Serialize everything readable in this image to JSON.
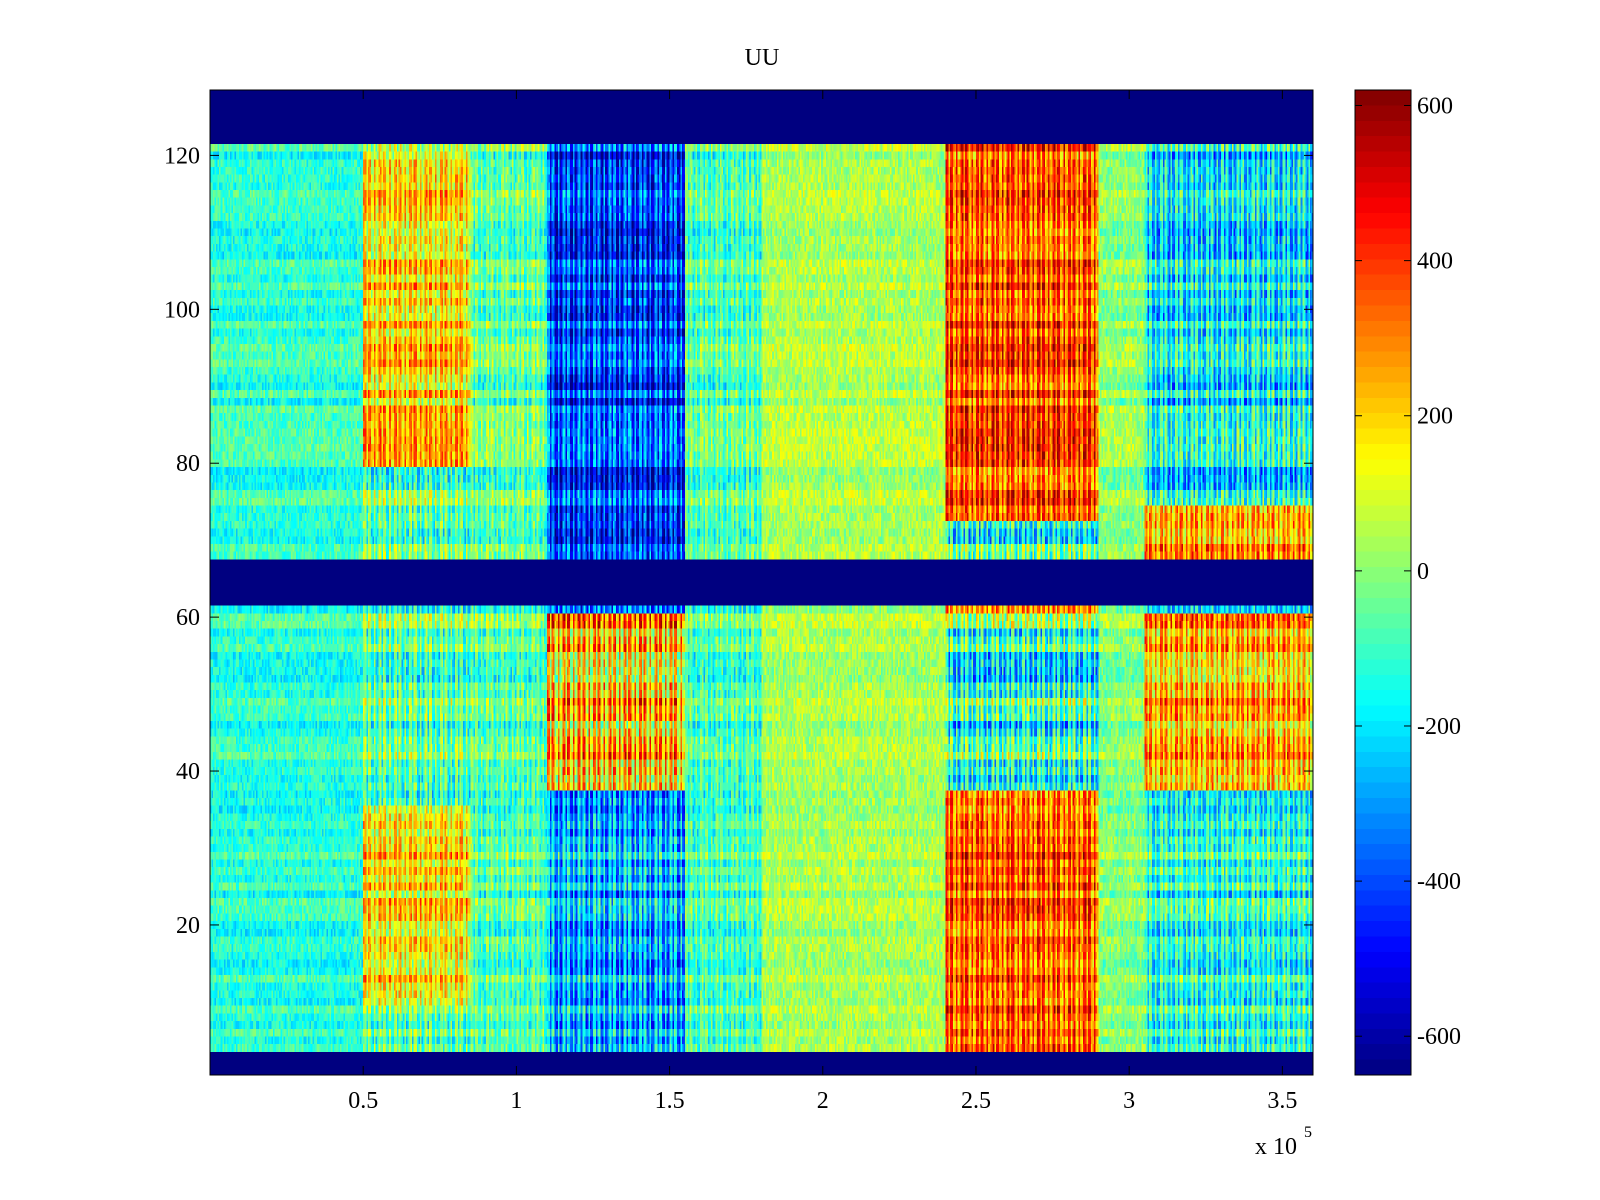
{
  "chart_data": {
    "type": "heatmap",
    "title": "UU",
    "xlabel": "",
    "ylabel": "",
    "x_exponent_label": "x 10",
    "x_exponent_power": "5",
    "xlim": [
      0,
      3.6
    ],
    "ylim": [
      0.5,
      128.5
    ],
    "x_ticks": [
      {
        "value": 0.5,
        "label": "0.5"
      },
      {
        "value": 1,
        "label": "1"
      },
      {
        "value": 1.5,
        "label": "1.5"
      },
      {
        "value": 2,
        "label": "2"
      },
      {
        "value": 2.5,
        "label": "2.5"
      },
      {
        "value": 3,
        "label": "3"
      },
      {
        "value": 3.5,
        "label": "3.5"
      }
    ],
    "y_ticks": [
      {
        "value": 20,
        "label": "20"
      },
      {
        "value": 40,
        "label": "40"
      },
      {
        "value": 60,
        "label": "60"
      },
      {
        "value": 80,
        "label": "80"
      },
      {
        "value": 100,
        "label": "100"
      },
      {
        "value": 120,
        "label": "120"
      }
    ],
    "colormap": "jet",
    "clim": [
      -650,
      620
    ],
    "colorbar": {
      "position": "right",
      "ticks": [
        {
          "value": 600,
          "label": "600"
        },
        {
          "value": 400,
          "label": "400"
        },
        {
          "value": 200,
          "label": "200"
        },
        {
          "value": 0,
          "label": "0"
        },
        {
          "value": -200,
          "label": "-200"
        },
        {
          "value": -400,
          "label": "-400"
        },
        {
          "value": -600,
          "label": "-600"
        }
      ]
    },
    "masked_row_ranges": [
      [
        0.5,
        3.5
      ],
      [
        61.5,
        67.5
      ],
      [
        121.5,
        128.5
      ]
    ],
    "time_segments": [
      {
        "x_start": 0,
        "x_end": 0.5,
        "character": "mostly weak negative (cyan/green)"
      },
      {
        "x_start": 0.5,
        "x_end": 0.85,
        "character": "mixed, positive bands near rows 10-35 and 85-120"
      },
      {
        "x_start": 1.1,
        "x_end": 1.55,
        "character": "strong negative in upper block, positive in rows 38-60"
      },
      {
        "x_start": 1.8,
        "x_end": 2.4,
        "character": "weak positive (yellow-green)"
      },
      {
        "x_start": 2.4,
        "x_end": 2.9,
        "character": "strong positive, ~+450"
      },
      {
        "x_start": 3.05,
        "x_end": 3.6,
        "character": "mixed, negative upper rows, positive rows 38-60"
      }
    ]
  }
}
